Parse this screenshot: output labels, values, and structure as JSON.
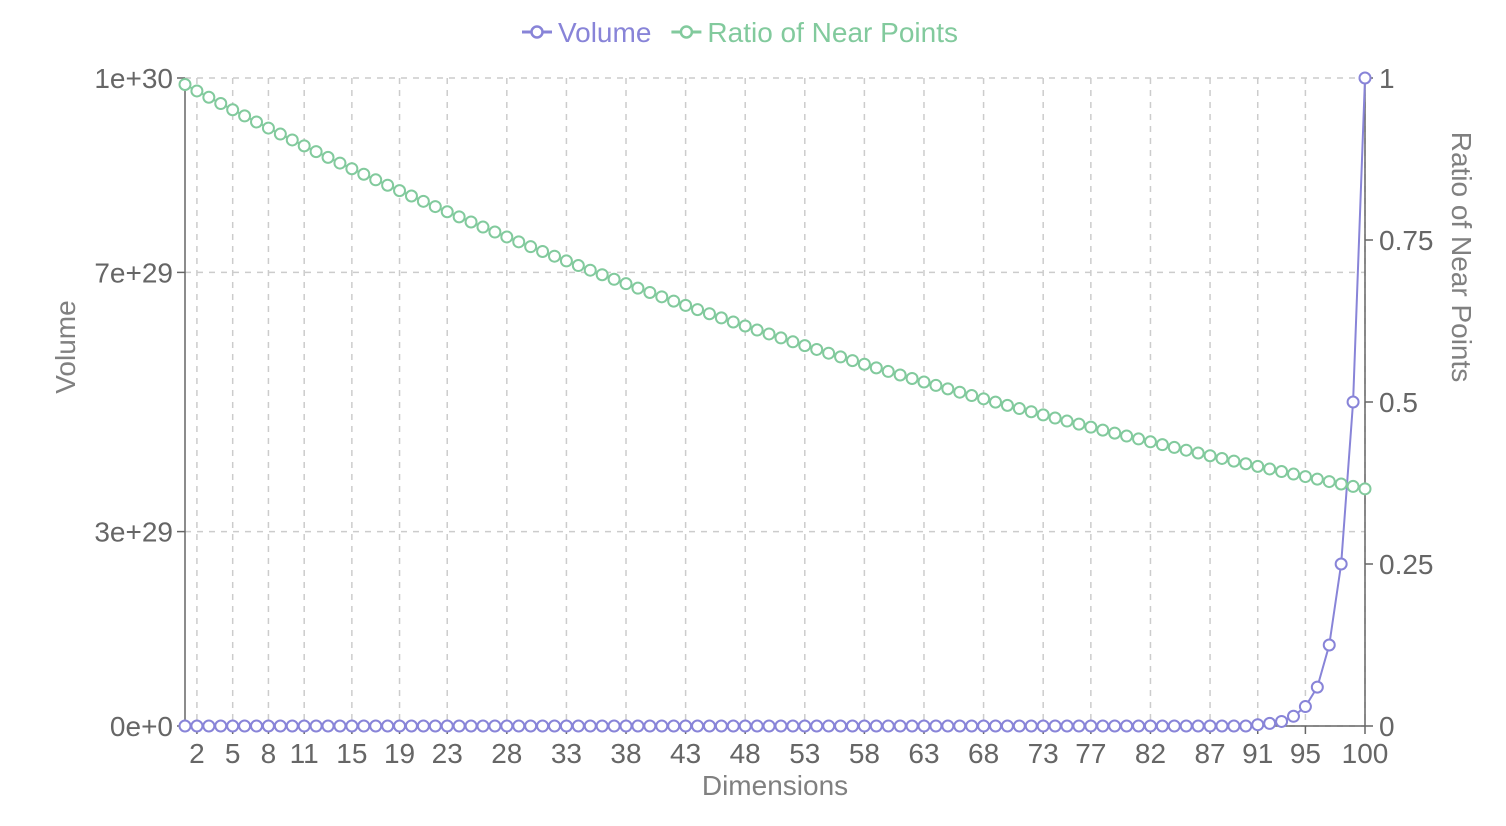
{
  "chart_data": {
    "type": "line",
    "title": "",
    "xlabel": "Dimensions",
    "ylabel_left": "Volume",
    "ylabel_right": "Ratio of Near Points",
    "grid": true,
    "legend_position": "top-center",
    "x_ticks": [
      2,
      5,
      8,
      11,
      15,
      19,
      23,
      28,
      33,
      38,
      43,
      48,
      53,
      58,
      63,
      68,
      73,
      77,
      82,
      87,
      91,
      95,
      100
    ],
    "y_left_ticks": [
      {
        "value": 0,
        "label": "0e+0"
      },
      {
        "value": 3e+29,
        "label": "3e+29"
      },
      {
        "value": 7e+29,
        "label": "7e+29"
      },
      {
        "value": 1e+30,
        "label": "1e+30"
      }
    ],
    "y_right_ticks": [
      {
        "value": 0,
        "label": "0"
      },
      {
        "value": 0.25,
        "label": "0.25"
      },
      {
        "value": 0.5,
        "label": "0.5"
      },
      {
        "value": 0.75,
        "label": "0.75"
      },
      {
        "value": 1,
        "label": "1"
      }
    ],
    "y_left_lim": [
      0,
      1e+30
    ],
    "y_right_lim": [
      0,
      1
    ],
    "x_range": [
      1,
      100
    ],
    "series": [
      {
        "name": "Volume",
        "axis": "left",
        "color": "#8884d8",
        "points": [
          [
            1,
            0
          ],
          [
            2,
            0
          ],
          [
            3,
            0
          ],
          [
            4,
            0
          ],
          [
            5,
            0
          ],
          [
            6,
            0
          ],
          [
            7,
            0
          ],
          [
            8,
            0
          ],
          [
            9,
            0
          ],
          [
            10,
            0
          ],
          [
            11,
            0
          ],
          [
            12,
            0
          ],
          [
            13,
            0
          ],
          [
            14,
            0
          ],
          [
            15,
            0
          ],
          [
            16,
            0
          ],
          [
            17,
            0
          ],
          [
            18,
            0
          ],
          [
            19,
            0
          ],
          [
            20,
            0
          ],
          [
            21,
            0
          ],
          [
            22,
            0
          ],
          [
            23,
            0
          ],
          [
            24,
            0
          ],
          [
            25,
            0
          ],
          [
            26,
            0
          ],
          [
            27,
            0
          ],
          [
            28,
            0
          ],
          [
            29,
            0
          ],
          [
            30,
            0
          ],
          [
            31,
            0
          ],
          [
            32,
            0
          ],
          [
            33,
            0
          ],
          [
            34,
            0
          ],
          [
            35,
            0
          ],
          [
            36,
            0
          ],
          [
            37,
            0
          ],
          [
            38,
            0
          ],
          [
            39,
            0
          ],
          [
            40,
            0
          ],
          [
            41,
            0
          ],
          [
            42,
            0
          ],
          [
            43,
            0
          ],
          [
            44,
            0
          ],
          [
            45,
            0
          ],
          [
            46,
            0
          ],
          [
            47,
            0
          ],
          [
            48,
            0
          ],
          [
            49,
            0
          ],
          [
            50,
            0
          ],
          [
            51,
            0
          ],
          [
            52,
            0
          ],
          [
            53,
            0
          ],
          [
            54,
            0
          ],
          [
            55,
            0
          ],
          [
            56,
            0
          ],
          [
            57,
            0
          ],
          [
            58,
            0
          ],
          [
            59,
            0
          ],
          [
            60,
            0
          ],
          [
            61,
            0
          ],
          [
            62,
            0
          ],
          [
            63,
            0
          ],
          [
            64,
            0
          ],
          [
            65,
            0
          ],
          [
            66,
            0
          ],
          [
            67,
            0
          ],
          [
            68,
            0
          ],
          [
            69,
            0
          ],
          [
            70,
            0
          ],
          [
            71,
            0
          ],
          [
            72,
            0
          ],
          [
            73,
            0
          ],
          [
            74,
            0
          ],
          [
            75,
            0
          ],
          [
            76,
            0
          ],
          [
            77,
            0
          ],
          [
            78,
            0
          ],
          [
            79,
            0
          ],
          [
            80,
            0
          ],
          [
            81,
            0
          ],
          [
            82,
            0
          ],
          [
            83,
            0
          ],
          [
            84,
            0
          ],
          [
            85,
            0
          ],
          [
            86,
            0
          ],
          [
            87,
            0
          ],
          [
            88,
            0
          ],
          [
            89,
            0
          ],
          [
            90,
            0
          ],
          [
            91,
            2e+27
          ],
          [
            92,
            4e+27
          ],
          [
            93,
            7e+27
          ],
          [
            94,
            1.5e+28
          ],
          [
            95,
            3e+28
          ],
          [
            96,
            6e+28
          ],
          [
            97,
            1.25e+29
          ],
          [
            98,
            2.5e+29
          ],
          [
            99,
            5e+29
          ],
          [
            100,
            1e+30
          ]
        ]
      },
      {
        "name": "Ratio of Near Points",
        "axis": "right",
        "color": "#82ca9d",
        "points": [
          [
            1,
            0.99
          ],
          [
            2,
            0.98
          ],
          [
            3,
            0.9703
          ],
          [
            4,
            0.9606
          ],
          [
            5,
            0.951
          ],
          [
            6,
            0.9415
          ],
          [
            7,
            0.9321
          ],
          [
            8,
            0.9227
          ],
          [
            9,
            0.9135
          ],
          [
            10,
            0.9044
          ],
          [
            11,
            0.8953
          ],
          [
            12,
            0.8864
          ],
          [
            13,
            0.8775
          ],
          [
            14,
            0.8687
          ],
          [
            15,
            0.86
          ],
          [
            16,
            0.8515
          ],
          [
            17,
            0.8429
          ],
          [
            18,
            0.8345
          ],
          [
            19,
            0.8262
          ],
          [
            20,
            0.8179
          ],
          [
            21,
            0.8097
          ],
          [
            22,
            0.8016
          ],
          [
            23,
            0.7936
          ],
          [
            24,
            0.7857
          ],
          [
            25,
            0.7778
          ],
          [
            26,
            0.77
          ],
          [
            27,
            0.7623
          ],
          [
            28,
            0.7547
          ],
          [
            29,
            0.7472
          ],
          [
            30,
            0.7397
          ],
          [
            31,
            0.7323
          ],
          [
            32,
            0.725
          ],
          [
            33,
            0.7177
          ],
          [
            34,
            0.7106
          ],
          [
            35,
            0.7034
          ],
          [
            36,
            0.6964
          ],
          [
            37,
            0.6894
          ],
          [
            38,
            0.6826
          ],
          [
            39,
            0.6757
          ],
          [
            40,
            0.669
          ],
          [
            41,
            0.6623
          ],
          [
            42,
            0.6557
          ],
          [
            43,
            0.6491
          ],
          [
            44,
            0.6426
          ],
          [
            45,
            0.6362
          ],
          [
            46,
            0.6298
          ],
          [
            47,
            0.6235
          ],
          [
            48,
            0.6173
          ],
          [
            49,
            0.6111
          ],
          [
            50,
            0.605
          ],
          [
            51,
            0.5989
          ],
          [
            52,
            0.5929
          ],
          [
            53,
            0.587
          ],
          [
            54,
            0.5811
          ],
          [
            55,
            0.5753
          ],
          [
            56,
            0.5696
          ],
          [
            57,
            0.5639
          ],
          [
            58,
            0.5583
          ],
          [
            59,
            0.5527
          ],
          [
            60,
            0.5472
          ],
          [
            61,
            0.5417
          ],
          [
            62,
            0.5363
          ],
          [
            63,
            0.5309
          ],
          [
            64,
            0.5256
          ],
          [
            65,
            0.5203
          ],
          [
            66,
            0.5151
          ],
          [
            67,
            0.51
          ],
          [
            68,
            0.5049
          ],
          [
            69,
            0.4998
          ],
          [
            70,
            0.4948
          ],
          [
            71,
            0.4899
          ],
          [
            72,
            0.485
          ],
          [
            73,
            0.4801
          ],
          [
            74,
            0.4753
          ],
          [
            75,
            0.4706
          ],
          [
            76,
            0.4659
          ],
          [
            77,
            0.4612
          ],
          [
            78,
            0.4566
          ],
          [
            79,
            0.452
          ],
          [
            80,
            0.4475
          ],
          [
            81,
            0.443
          ],
          [
            82,
            0.4386
          ],
          [
            83,
            0.4342
          ],
          [
            84,
            0.4299
          ],
          [
            85,
            0.4256
          ],
          [
            86,
            0.4213
          ],
          [
            87,
            0.4171
          ],
          [
            88,
            0.4129
          ],
          [
            89,
            0.4088
          ],
          [
            90,
            0.4047
          ],
          [
            91,
            0.4007
          ],
          [
            92,
            0.3967
          ],
          [
            93,
            0.3927
          ],
          [
            94,
            0.3888
          ],
          [
            95,
            0.3849
          ],
          [
            96,
            0.381
          ],
          [
            97,
            0.3772
          ],
          [
            98,
            0.3735
          ],
          [
            99,
            0.3697
          ],
          [
            100,
            0.366
          ]
        ]
      }
    ]
  }
}
